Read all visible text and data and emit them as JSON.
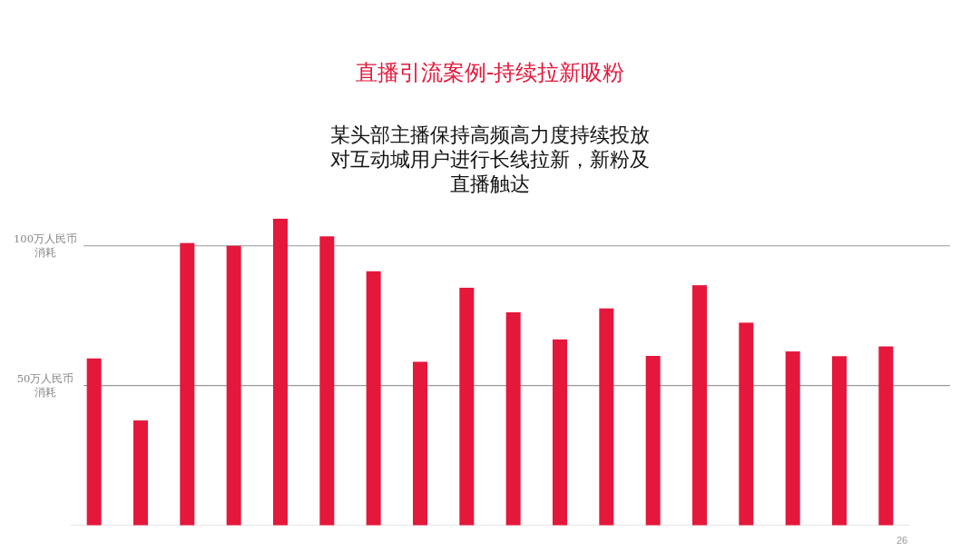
{
  "chart_data": {
    "type": "bar",
    "title": "直播引流案例-持续拉新吸粉",
    "subtitle": "某头部主播保持高频高力度持续投放对互动城用户进行长线拉新，新粉及直播触达",
    "categories": [
      null,
      null,
      null,
      null,
      null,
      null,
      null,
      null,
      null,
      null,
      null,
      null,
      null,
      null,
      null,
      null,
      null,
      null
    ],
    "values": [
      59.7,
      37.5,
      101,
      100,
      109.7,
      103.4,
      90.9,
      58.5,
      85,
      76.2,
      66.5,
      77.6,
      60.6,
      85.9,
      72.5,
      62.2,
      60.5,
      64
    ],
    "color": "#e5173b",
    "ylim": [
      0,
      110
    ],
    "yticks": [
      {
        "value": 50,
        "label": "50万人民币消耗"
      },
      {
        "value": 100,
        "label": "100万人民币消耗"
      }
    ],
    "grid": "y",
    "annotations": [
      "26"
    ]
  }
}
